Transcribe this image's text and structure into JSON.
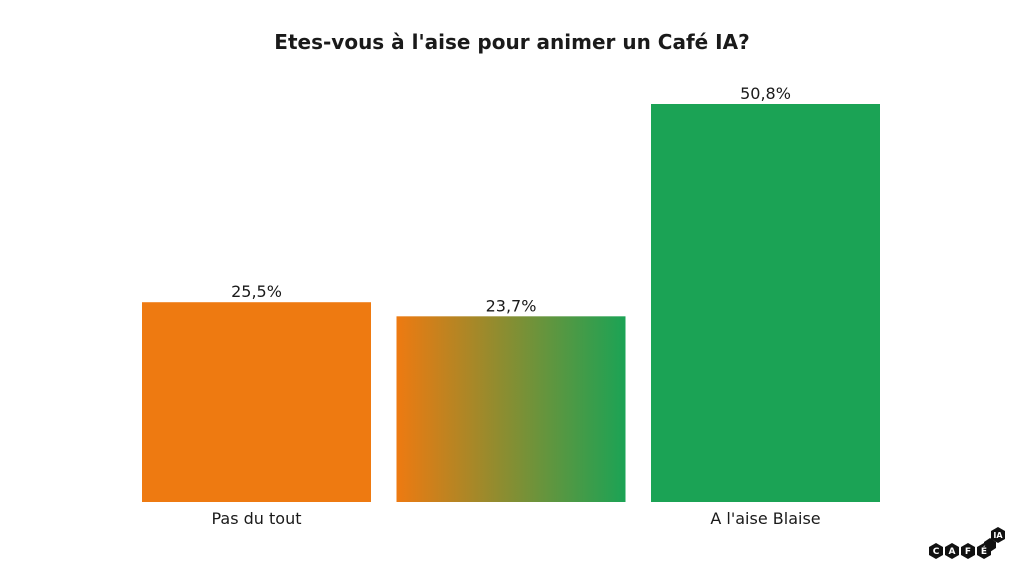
{
  "chart_data": {
    "type": "bar",
    "title": "Etes-vous à l'aise pour animer un Café IA?",
    "categories": [
      "Pas du tout",
      "",
      "A l'aise Blaise"
    ],
    "values": [
      25.5,
      23.7,
      50.8
    ],
    "value_labels": [
      "25,5%",
      "23,7%",
      "50,8%"
    ],
    "xlabel": "",
    "ylabel": "",
    "ylim": [
      0,
      50.8
    ],
    "grid": false,
    "colors": [
      "#ee7a11",
      "gradient",
      "#1ba355"
    ],
    "gradient": [
      "#ee7a11",
      "#1ba355"
    ]
  },
  "logo": {
    "text": "CAFÉ IA"
  }
}
